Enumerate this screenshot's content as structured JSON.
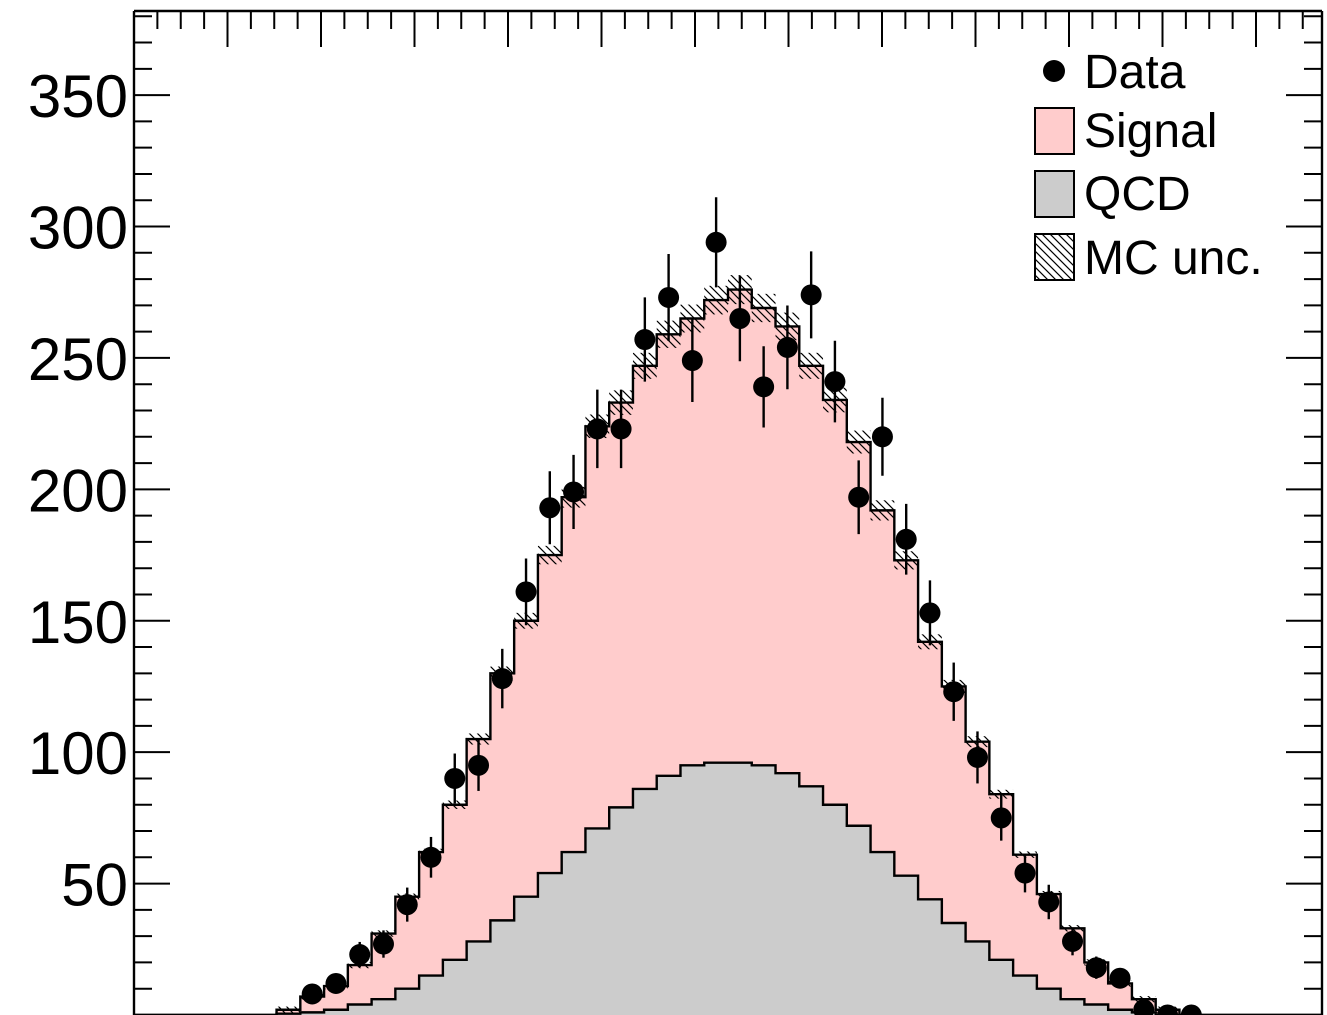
{
  "chart_data": {
    "type": "histogram",
    "title": "",
    "xlabel": "",
    "ylabel": "",
    "ylim": [
      0,
      382
    ],
    "y_ticks": [
      50,
      100,
      150,
      200,
      250,
      300,
      350
    ],
    "y_tick_labels": [
      "50",
      "100",
      "150",
      "200",
      "250",
      "300",
      "350"
    ],
    "bins": 50,
    "colors": {
      "signal": "#ffcccc",
      "qcd": "#cccccc",
      "data": "#000000",
      "outline": "#000000"
    },
    "legend_placement": "top-right",
    "legend": [
      {
        "key": "data",
        "label": "Data"
      },
      {
        "key": "signal",
        "label": "Signal"
      },
      {
        "key": "qcd",
        "label": "QCD"
      },
      {
        "key": "mc_unc",
        "label": "MC unc."
      }
    ],
    "series": [
      {
        "key": "qcd",
        "label": "QCD",
        "style": "stacked-fill",
        "values": [
          0,
          0,
          0,
          0,
          0,
          0,
          0.5,
          1,
          2,
          4,
          6,
          10,
          15,
          21,
          28,
          36,
          45,
          54,
          62,
          71,
          79,
          86,
          91,
          95,
          96,
          96,
          95,
          92,
          87,
          80,
          72,
          62,
          53,
          44,
          35,
          28,
          21,
          15,
          10,
          6,
          4,
          2,
          1,
          0,
          0,
          0,
          0,
          0,
          0,
          0
        ]
      },
      {
        "key": "total",
        "label": "Signal",
        "style": "stacked-fill",
        "values": [
          0,
          0,
          0,
          0,
          0,
          0,
          2,
          7,
          11,
          19,
          31,
          45,
          62,
          80,
          105,
          130,
          150,
          175,
          197,
          224,
          233,
          247,
          259,
          265,
          272,
          276,
          269,
          262,
          247,
          234,
          218,
          192,
          173,
          142,
          125,
          104,
          84,
          61,
          46,
          33,
          20,
          12,
          6,
          2,
          0,
          0,
          0,
          0,
          0,
          0
        ]
      },
      {
        "key": "data",
        "label": "Data",
        "style": "points",
        "values": [
          null,
          null,
          null,
          null,
          null,
          null,
          null,
          8,
          12,
          23,
          27,
          42,
          60,
          90,
          95,
          128,
          161,
          193,
          199,
          223,
          223,
          257,
          273,
          249,
          294,
          265,
          239,
          254,
          274,
          241,
          197,
          220,
          181,
          153,
          123,
          98,
          75,
          54,
          43,
          28,
          18,
          14,
          2,
          0,
          0,
          null,
          null,
          null,
          null,
          null
        ]
      }
    ]
  }
}
